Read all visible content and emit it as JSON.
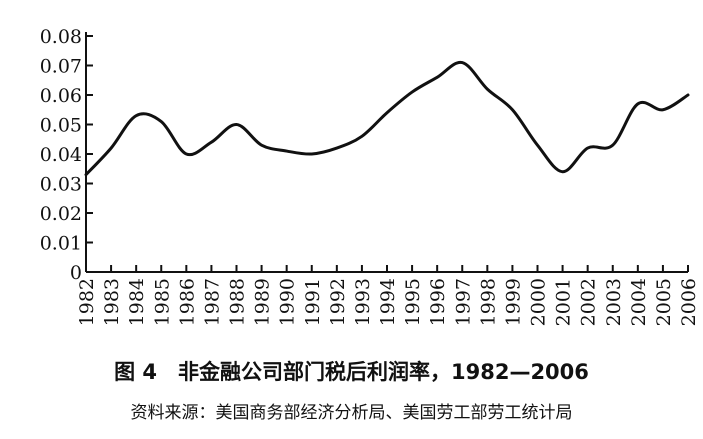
{
  "chart_data": {
    "type": "line",
    "title": "图 4　非金融公司部门税后利润率，1982—2006",
    "source": "资料来源：美国商务部经济分析局、美国劳工部劳工统计局",
    "xlabel": "",
    "ylabel": "",
    "ylim": [
      0,
      0.08
    ],
    "y_ticks": [
      "0",
      "0.01",
      "0.02",
      "0.03",
      "0.04",
      "0.05",
      "0.06",
      "0.07",
      "0.08"
    ],
    "grid": false,
    "x": [
      "1982",
      "1983",
      "1984",
      "1985",
      "1986",
      "1987",
      "1988",
      "1989",
      "1990",
      "1991",
      "1992",
      "1993",
      "1994",
      "1995",
      "1996",
      "1997",
      "1998",
      "1999",
      "2000",
      "2001",
      "2002",
      "2003",
      "2004",
      "2005",
      "2006"
    ],
    "series": [
      {
        "values": [
          0.033,
          0.042,
          0.053,
          0.051,
          0.04,
          0.044,
          0.05,
          0.043,
          0.041,
          0.04,
          0.042,
          0.046,
          0.054,
          0.061,
          0.066,
          0.071,
          0.062,
          0.055,
          0.043,
          0.034,
          0.042,
          0.043,
          0.057,
          0.055,
          0.06
        ]
      }
    ],
    "line_color": "#111111"
  }
}
